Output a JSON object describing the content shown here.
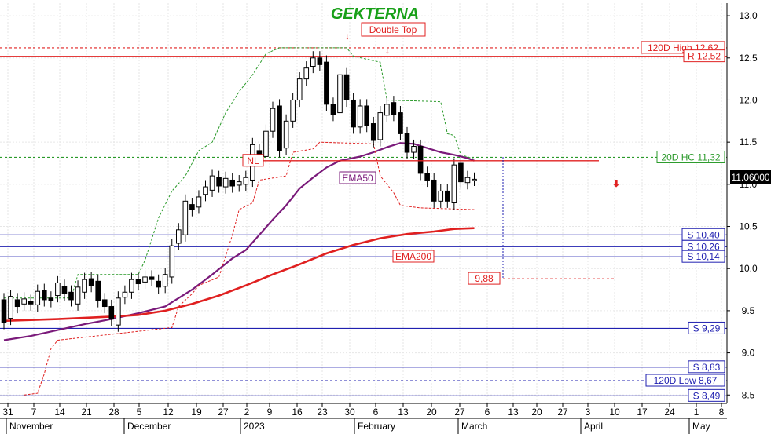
{
  "chart_data": {
    "type": "candlestick",
    "title": "GEKTERNA",
    "title_color": "#18a018",
    "ylim": [
      8.4,
      13.15
    ],
    "y_ticks": [
      "13.0",
      "12.5",
      "12.0",
      "11.5",
      "11.0",
      "10.5",
      "10.0",
      "9.5",
      "9.0",
      "8.5"
    ],
    "x_ticks": [
      "31",
      "7",
      "14",
      "21",
      "28",
      "5",
      "12",
      "19",
      "27",
      "2",
      "9",
      "16",
      "23",
      "30",
      "6",
      "13",
      "20",
      "27",
      "6",
      "13",
      "20",
      "27",
      "3",
      "10",
      "17",
      "24",
      "1",
      "8"
    ],
    "months": [
      "November",
      "December",
      "2023",
      "February",
      "March",
      "April",
      "May"
    ],
    "last_price": "11.06000",
    "horizontal_lines": [
      {
        "label": "120D High 12,62",
        "value": 12.62,
        "color": "#e02020",
        "style": "dashed"
      },
      {
        "label": "R 12,52",
        "value": 12.52,
        "color": "#e02020",
        "style": "solid"
      },
      {
        "label": "20D HC 11,32",
        "value": 11.32,
        "color": "#2a9a2a",
        "style": "dashed"
      },
      {
        "label": "S 10,40",
        "value": 10.4,
        "color": "#2020b0",
        "style": "solid"
      },
      {
        "label": "S 10,26",
        "value": 10.26,
        "color": "#2020b0",
        "style": "solid"
      },
      {
        "label": "S 10,14",
        "value": 10.14,
        "color": "#2020b0",
        "style": "solid"
      },
      {
        "label": "S 9,29",
        "value": 9.29,
        "color": "#2020b0",
        "style": "solid"
      },
      {
        "label": "S 8,83",
        "value": 8.83,
        "color": "#2020b0",
        "style": "solid"
      },
      {
        "label": "120D Low 8,67",
        "value": 8.67,
        "color": "#2020b0",
        "style": "dashed"
      },
      {
        "label": "S 8,49",
        "value": 8.49,
        "color": "#2020b0",
        "style": "solid"
      }
    ],
    "annotations": {
      "double_top": "Double Top",
      "nl": "NL",
      "nl_value": 11.28,
      "ema50": "EMA50",
      "ema200": "EMA200",
      "target": "9,88",
      "target_value": 9.88
    },
    "series": [
      {
        "name": "EMA50",
        "color": "#7a1a7a",
        "points": [
          [
            0,
            9.15
          ],
          [
            4,
            9.2
          ],
          [
            8,
            9.27
          ],
          [
            12,
            9.34
          ],
          [
            16,
            9.4
          ],
          [
            20,
            9.47
          ],
          [
            24,
            9.55
          ],
          [
            28,
            9.75
          ],
          [
            31,
            9.93
          ],
          [
            34,
            10.12
          ],
          [
            36,
            10.22
          ],
          [
            38,
            10.4
          ],
          [
            40,
            10.58
          ],
          [
            42,
            10.75
          ],
          [
            44,
            10.95
          ],
          [
            46,
            11.08
          ],
          [
            48,
            11.2
          ],
          [
            50,
            11.28
          ],
          [
            53,
            11.33
          ],
          [
            55,
            11.38
          ],
          [
            57,
            11.44
          ],
          [
            59,
            11.49
          ],
          [
            61,
            11.48
          ],
          [
            63,
            11.43
          ],
          [
            65,
            11.38
          ],
          [
            67,
            11.35
          ],
          [
            69,
            11.31
          ],
          [
            70,
            11.28
          ]
        ]
      },
      {
        "name": "EMA200",
        "color": "#e02020",
        "points": [
          [
            0,
            9.38
          ],
          [
            8,
            9.4
          ],
          [
            16,
            9.43
          ],
          [
            20,
            9.45
          ],
          [
            24,
            9.5
          ],
          [
            28,
            9.58
          ],
          [
            32,
            9.68
          ],
          [
            36,
            9.8
          ],
          [
            40,
            9.93
          ],
          [
            44,
            10.05
          ],
          [
            48,
            10.18
          ],
          [
            52,
            10.28
          ],
          [
            56,
            10.36
          ],
          [
            60,
            10.41
          ],
          [
            64,
            10.44
          ],
          [
            67,
            10.47
          ],
          [
            70,
            10.48
          ]
        ]
      },
      {
        "name": "20D High",
        "color": "#2a9a2a",
        "points": [
          [
            0,
            9.65
          ],
          [
            10,
            9.65
          ],
          [
            11,
            9.93
          ],
          [
            20,
            9.93
          ],
          [
            21,
            10.1
          ],
          [
            23,
            10.6
          ],
          [
            25,
            10.92
          ],
          [
            27,
            11.1
          ],
          [
            29,
            11.4
          ],
          [
            31,
            11.5
          ],
          [
            33,
            11.85
          ],
          [
            35,
            12.1
          ],
          [
            37,
            12.3
          ],
          [
            39,
            12.55
          ],
          [
            41,
            12.62
          ],
          [
            51,
            12.62
          ],
          [
            52,
            12.52
          ],
          [
            56,
            12.45
          ],
          [
            57,
            12.0
          ],
          [
            65,
            11.98
          ],
          [
            66,
            11.6
          ],
          [
            67,
            11.58
          ],
          [
            68,
            11.35
          ],
          [
            70,
            11.3
          ]
        ]
      },
      {
        "name": "20D Low",
        "color": "#e02020",
        "points": [
          [
            3,
            8.5
          ],
          [
            5,
            8.52
          ],
          [
            6,
            8.75
          ],
          [
            7,
            9.05
          ],
          [
            8,
            9.15
          ],
          [
            25,
            9.3
          ],
          [
            26,
            9.55
          ],
          [
            28,
            9.7
          ],
          [
            29,
            9.8
          ],
          [
            32,
            9.9
          ],
          [
            33,
            10.15
          ],
          [
            34,
            10.4
          ],
          [
            35,
            10.7
          ],
          [
            37,
            10.78
          ],
          [
            38,
            11.05
          ],
          [
            42,
            11.1
          ],
          [
            43,
            11.38
          ],
          [
            46,
            11.42
          ],
          [
            47,
            11.5
          ],
          [
            55,
            11.48
          ],
          [
            56,
            11.1
          ],
          [
            58,
            10.9
          ],
          [
            59,
            10.75
          ],
          [
            62,
            10.72
          ],
          [
            70,
            10.7
          ]
        ]
      }
    ],
    "candles": [
      [
        9.63,
        9.36
      ],
      [
        9.41,
        9.67
      ],
      [
        9.63,
        9.55
      ],
      [
        9.58,
        9.64
      ],
      [
        9.61,
        9.58
      ],
      [
        9.57,
        9.73
      ],
      [
        9.74,
        9.63
      ],
      [
        9.65,
        9.62
      ],
      [
        9.68,
        9.83
      ],
      [
        9.79,
        9.7
      ],
      [
        9.72,
        9.63
      ],
      [
        9.58,
        9.78
      ],
      [
        9.72,
        9.87
      ],
      [
        9.88,
        9.8
      ],
      [
        9.85,
        9.62
      ],
      [
        9.63,
        9.55
      ],
      [
        9.55,
        9.4
      ],
      [
        9.33,
        9.65
      ],
      [
        9.66,
        9.72
      ],
      [
        9.72,
        9.87
      ],
      [
        9.87,
        9.82
      ],
      [
        9.84,
        9.9
      ],
      [
        9.9,
        9.87
      ],
      [
        9.85,
        9.78
      ],
      [
        9.79,
        9.93
      ],
      [
        9.9,
        10.27
      ],
      [
        10.3,
        10.46
      ],
      [
        10.4,
        10.8
      ],
      [
        10.76,
        10.7
      ],
      [
        10.73,
        10.85
      ],
      [
        10.88,
        10.97
      ],
      [
        10.93,
        11.1
      ],
      [
        11.08,
        10.98
      ],
      [
        10.97,
        11.07
      ],
      [
        11.05,
        10.98
      ],
      [
        10.99,
        11.03
      ],
      [
        11.0,
        11.08
      ],
      [
        11.05,
        11.47
      ],
      [
        11.4,
        11.32
      ],
      [
        11.33,
        11.63
      ],
      [
        11.63,
        11.9
      ],
      [
        11.93,
        11.4
      ],
      [
        11.43,
        11.75
      ],
      [
        11.75,
        12.0
      ],
      [
        12.0,
        12.25
      ],
      [
        12.25,
        12.38
      ],
      [
        12.4,
        12.5
      ],
      [
        12.5,
        12.42
      ],
      [
        12.45,
        11.95
      ],
      [
        11.95,
        11.83
      ],
      [
        11.85,
        12.3
      ],
      [
        12.3,
        12.0
      ],
      [
        12.0,
        11.68
      ],
      [
        11.68,
        11.93
      ],
      [
        11.93,
        11.7
      ],
      [
        11.72,
        11.52
      ],
      [
        11.53,
        11.85
      ],
      [
        11.82,
        11.95
      ],
      [
        11.97,
        11.83
      ],
      [
        11.85,
        11.6
      ],
      [
        11.6,
        11.38
      ],
      [
        11.38,
        11.45
      ],
      [
        11.45,
        11.13
      ],
      [
        11.13,
        11.05
      ],
      [
        11.05,
        10.8
      ],
      [
        10.8,
        10.92
      ],
      [
        10.92,
        10.8
      ],
      [
        10.78,
        11.23
      ],
      [
        11.25,
        11.03
      ],
      [
        11.02,
        11.08
      ],
      [
        11.06,
        11.06
      ]
    ]
  }
}
